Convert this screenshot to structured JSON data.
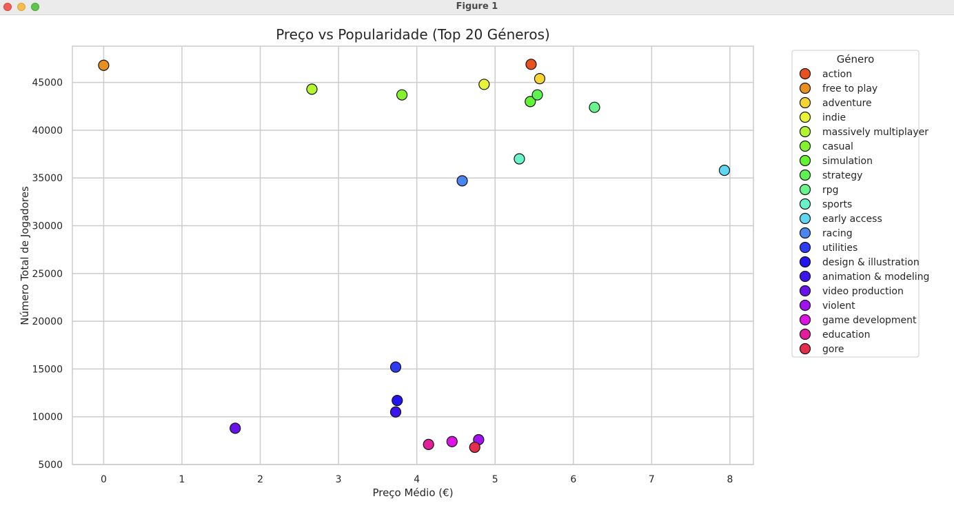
{
  "window": {
    "title": "Figure 1"
  },
  "chart_data": {
    "type": "scatter",
    "title": "Preço vs Popularidade (Top 20 Géneros)",
    "xlabel": "Preço Médio (€)",
    "ylabel": "Número Total de Jogadores",
    "xlim": [
      -0.4,
      8.3
    ],
    "ylim": [
      5000,
      48800
    ],
    "xticks": [
      0,
      1,
      2,
      3,
      4,
      5,
      6,
      7,
      8
    ],
    "yticks": [
      5000,
      10000,
      15000,
      20000,
      25000,
      30000,
      35000,
      40000,
      45000
    ],
    "grid": true,
    "legend": {
      "title": "Género",
      "placement": "outside-right-top"
    },
    "series": [
      {
        "name": "action",
        "color": "#e8511f",
        "points": [
          [
            5.46,
            46900
          ]
        ]
      },
      {
        "name": "free to play",
        "color": "#e8901f",
        "points": [
          [
            0.0,
            46800
          ]
        ]
      },
      {
        "name": "adventure",
        "color": "#f4d531",
        "points": [
          [
            5.57,
            45400
          ]
        ]
      },
      {
        "name": "indie",
        "color": "#e7f536",
        "points": [
          [
            4.86,
            44800
          ]
        ]
      },
      {
        "name": "massively multiplayer",
        "color": "#b4f52f",
        "points": [
          [
            2.66,
            44300
          ]
        ]
      },
      {
        "name": "casual",
        "color": "#86f22f",
        "points": [
          [
            3.81,
            43700
          ]
        ]
      },
      {
        "name": "simulation",
        "color": "#63f533",
        "points": [
          [
            5.45,
            43000
          ]
        ]
      },
      {
        "name": "strategy",
        "color": "#5ef350",
        "points": [
          [
            5.54,
            43700
          ]
        ]
      },
      {
        "name": "rpg",
        "color": "#69f58d",
        "points": [
          [
            6.27,
            42400
          ]
        ]
      },
      {
        "name": "sports",
        "color": "#6cf2c9",
        "points": [
          [
            5.31,
            37000
          ]
        ]
      },
      {
        "name": "early access",
        "color": "#5fd6f2",
        "points": [
          [
            7.93,
            35800
          ]
        ]
      },
      {
        "name": "racing",
        "color": "#4a85f0",
        "points": [
          [
            4.58,
            34700
          ]
        ]
      },
      {
        "name": "utilities",
        "color": "#2f3cf2",
        "points": [
          [
            3.73,
            15200
          ]
        ]
      },
      {
        "name": "design & illustration",
        "color": "#2415f0",
        "points": [
          [
            3.75,
            11700
          ]
        ]
      },
      {
        "name": "animation & modeling",
        "color": "#3d14ef",
        "points": [
          [
            3.73,
            10500
          ]
        ]
      },
      {
        "name": "video production",
        "color": "#6a12ec",
        "points": [
          [
            1.68,
            8800
          ]
        ]
      },
      {
        "name": "violent",
        "color": "#a013ef",
        "points": [
          [
            4.79,
            7600
          ]
        ]
      },
      {
        "name": "game development",
        "color": "#dc14e6",
        "points": [
          [
            4.45,
            7400
          ]
        ]
      },
      {
        "name": "education",
        "color": "#e21e9b",
        "points": [
          [
            4.15,
            7100
          ]
        ]
      },
      {
        "name": "gore",
        "color": "#e52e4e",
        "points": [
          [
            4.74,
            6800
          ]
        ]
      }
    ]
  }
}
